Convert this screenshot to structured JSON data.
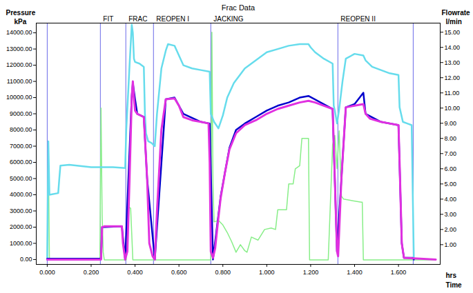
{
  "chart_data": {
    "type": "line",
    "title": "Frac Data",
    "ylabel": [
      "Pressure",
      "kPa"
    ],
    "y2label": [
      "Flowrate",
      "l/min"
    ],
    "xlabel": [
      "hrs",
      "Time"
    ],
    "xlim": [
      -0.05,
      1.79
    ],
    "xticks": [
      {
        "value": 0,
        "label": "0.000"
      },
      {
        "value": 0.2,
        "label": "0.200"
      },
      {
        "value": 0.4,
        "label": "0.400"
      },
      {
        "value": 0.6,
        "label": "0.600"
      },
      {
        "value": 0.8,
        "label": "0.800"
      },
      {
        "value": 1.0,
        "label": "1.000"
      },
      {
        "value": 1.2,
        "label": "1.200"
      },
      {
        "value": 1.4,
        "label": "1.400"
      },
      {
        "value": 1.6,
        "label": "1.600"
      }
    ],
    "ylim": [
      -300,
      14600
    ],
    "yticks": [
      {
        "value": 0,
        "label": "0.00"
      },
      {
        "value": 1000,
        "label": "1000.00"
      },
      {
        "value": 2000,
        "label": "2000.00"
      },
      {
        "value": 3000,
        "label": "3000.00"
      },
      {
        "value": 4000,
        "label": "4000.00"
      },
      {
        "value": 5000,
        "label": "5000.00"
      },
      {
        "value": 6000,
        "label": "6000.00"
      },
      {
        "value": 7000,
        "label": "7000.00"
      },
      {
        "value": 8000,
        "label": "8000.00"
      },
      {
        "value": 9000,
        "label": "9000.00"
      },
      {
        "value": 10000,
        "label": "10000.00"
      },
      {
        "value": 11000,
        "label": "11000.00"
      },
      {
        "value": 12000,
        "label": "12000.00"
      },
      {
        "value": 13000,
        "label": "13000.00"
      },
      {
        "value": 14000,
        "label": "14000.00"
      }
    ],
    "y2lim": [
      -0.3,
      15.6
    ],
    "y2ticks": [
      {
        "value": 1,
        "label": "1.00"
      },
      {
        "value": 2,
        "label": "2.00"
      },
      {
        "value": 3,
        "label": "3.00"
      },
      {
        "value": 4,
        "label": "4.00"
      },
      {
        "value": 5,
        "label": "5.00"
      },
      {
        "value": 6,
        "label": "6.00"
      },
      {
        "value": 7,
        "label": "7.00"
      },
      {
        "value": 8,
        "label": "8.00"
      },
      {
        "value": 9,
        "label": "9.00"
      },
      {
        "value": 10,
        "label": "10.00"
      },
      {
        "value": 11,
        "label": "11.00"
      },
      {
        "value": 12,
        "label": "12.00"
      },
      {
        "value": 13,
        "label": "13.00"
      },
      {
        "value": 14,
        "label": "14.00"
      },
      {
        "value": 15,
        "label": "15.00"
      }
    ],
    "grid": false,
    "vlines": [
      0.0,
      0.242,
      0.358,
      0.484,
      0.745,
      1.324,
      1.667
    ],
    "annotations": [
      {
        "x": 0.242,
        "text": "FIT"
      },
      {
        "x": 0.358,
        "text": "FRAC"
      },
      {
        "x": 0.484,
        "text": "REOPEN I"
      },
      {
        "x": 0.745,
        "text": "JACKING"
      },
      {
        "x": 1.324,
        "text": "REOPEN II"
      }
    ],
    "series": [
      {
        "color": "#88ee88",
        "axis": "y2",
        "type": "line",
        "x": [
          0.0,
          0.005,
          0.01,
          0.02,
          0.24,
          0.245,
          0.25,
          0.255,
          0.26,
          0.36,
          0.365,
          0.37,
          0.38,
          0.39,
          0.4,
          0.745,
          0.75,
          0.755,
          0.76,
          0.78,
          0.8,
          0.82,
          0.84,
          0.86,
          0.88,
          0.9,
          0.91,
          0.93,
          0.96,
          0.99,
          1.02,
          1.04,
          1.05,
          1.08,
          1.09,
          1.1,
          1.12,
          1.13,
          1.15,
          1.16,
          1.19,
          1.195,
          1.28,
          1.3,
          1.31,
          1.32,
          1.33,
          1.34,
          1.35,
          1.43,
          1.435,
          1.44,
          1.77
        ],
        "values": [
          0,
          7.3,
          0,
          0,
          0,
          10,
          3,
          0.5,
          0,
          0,
          3,
          3.5,
          3.4,
          0,
          0,
          0,
          15,
          5,
          2.5,
          2.6,
          2.3,
          1.8,
          1.2,
          0.5,
          1.0,
          0.6,
          0.5,
          1.5,
          1.3,
          2,
          2.1,
          2.0,
          3.3,
          3.3,
          3.3,
          5.0,
          5.0,
          6.0,
          6.2,
          8.0,
          8.0,
          0,
          0,
          7.6,
          8.2,
          6,
          8.5,
          4.2,
          4.0,
          3.8,
          3.8,
          0,
          0
        ]
      },
      {
        "color": "#66dcec",
        "axis": "y",
        "type": "line",
        "x": [
          0.0,
          0.005,
          0.01,
          0.05,
          0.055,
          0.06,
          0.1,
          0.2,
          0.3,
          0.355,
          0.36,
          0.375,
          0.385,
          0.39,
          0.395,
          0.4,
          0.42,
          0.44,
          0.445,
          0.45,
          0.46,
          0.475,
          0.49,
          0.5,
          0.52,
          0.54,
          0.55,
          0.58,
          0.6,
          0.62,
          0.66,
          0.7,
          0.74,
          0.745,
          0.76,
          0.78,
          0.8,
          0.82,
          0.85,
          0.9,
          0.95,
          1.0,
          1.05,
          1.1,
          1.15,
          1.19,
          1.2,
          1.22,
          1.26,
          1.3,
          1.305,
          1.31,
          1.32,
          1.33,
          1.345,
          1.36,
          1.4,
          1.44,
          1.45,
          1.48,
          1.52,
          1.56,
          1.6,
          1.605,
          1.62,
          1.64,
          1.66,
          1.665,
          1.67
        ],
        "values": [
          0,
          7300,
          4000,
          4100,
          5000,
          5800,
          5850,
          5700,
          5700,
          5650,
          8000,
          12000,
          14500,
          14000,
          12400,
          12200,
          12100,
          11900,
          9000,
          7800,
          7300,
          7200,
          7000,
          9000,
          11800,
          12900,
          13300,
          13200,
          12600,
          12000,
          11800,
          11700,
          11600,
          9000,
          8500,
          8100,
          8900,
          10000,
          10900,
          11800,
          12300,
          12800,
          13000,
          13200,
          13300,
          13300,
          13100,
          12800,
          12400,
          12100,
          9500,
          9200,
          8400,
          9300,
          11000,
          12400,
          12700,
          12600,
          12300,
          11900,
          11700,
          11500,
          11400,
          9400,
          8500,
          8400,
          8300,
          4000,
          0
        ]
      },
      {
        "color": "#0000cc",
        "axis": "y",
        "type": "line",
        "x": [
          0.0,
          0.245,
          0.25,
          0.34,
          0.355,
          0.385,
          0.39,
          0.4,
          0.41,
          0.44,
          0.455,
          0.49,
          0.54,
          0.58,
          0.62,
          0.7,
          0.74,
          0.755,
          0.79,
          0.83,
          0.86,
          0.9,
          0.95,
          1.0,
          1.05,
          1.1,
          1.15,
          1.19,
          1.3,
          1.32,
          1.34,
          1.36,
          1.4,
          1.44,
          1.45,
          1.52,
          1.6,
          1.615,
          1.625,
          1.665,
          1.67
        ],
        "values": [
          50,
          50,
          2000,
          2050,
          0,
          10100,
          10900,
          9900,
          9000,
          8800,
          5000,
          0,
          9900,
          10000,
          9000,
          8500,
          8400,
          0,
          3900,
          6900,
          8000,
          8400,
          8800,
          9200,
          9500,
          9700,
          10000,
          10100,
          9300,
          500,
          5000,
          9400,
          9600,
          10300,
          9000,
          8500,
          8300,
          1000,
          100,
          100,
          0
        ]
      },
      {
        "color": "#e030e0",
        "axis": "y",
        "type": "line",
        "x": [
          0.0,
          0.245,
          0.25,
          0.26,
          0.34,
          0.345,
          0.355,
          0.365,
          0.375,
          0.385,
          0.39,
          0.395,
          0.4,
          0.41,
          0.44,
          0.455,
          0.465,
          0.48,
          0.49,
          0.5,
          0.52,
          0.54,
          0.58,
          0.6,
          0.62,
          0.66,
          0.7,
          0.735,
          0.74,
          0.745,
          0.755,
          0.765,
          0.775,
          0.79,
          0.81,
          0.83,
          0.86,
          0.9,
          0.95,
          1.0,
          1.05,
          1.1,
          1.15,
          1.19,
          1.22,
          1.26,
          1.3,
          1.31,
          1.32,
          1.325,
          1.34,
          1.36,
          1.4,
          1.44,
          1.45,
          1.47,
          1.52,
          1.56,
          1.6,
          1.605,
          1.615,
          1.625,
          1.7,
          1.77
        ],
        "values": [
          0,
          0,
          2000,
          2050,
          2050,
          1000,
          0,
          500,
          5000,
          10000,
          11000,
          10000,
          9200,
          9000,
          8800,
          5000,
          1000,
          200,
          0,
          3000,
          8000,
          9900,
          9950,
          9500,
          8800,
          8600,
          8500,
          8400,
          6000,
          500,
          100,
          700,
          2000,
          3800,
          5400,
          6800,
          7800,
          8300,
          8600,
          9000,
          9300,
          9500,
          9700,
          9800,
          9700,
          9500,
          9300,
          5000,
          500,
          200,
          5000,
          9400,
          9500,
          9600,
          9000,
          8700,
          8500,
          8400,
          8300,
          6000,
          1000,
          100,
          50,
          0
        ]
      }
    ]
  }
}
